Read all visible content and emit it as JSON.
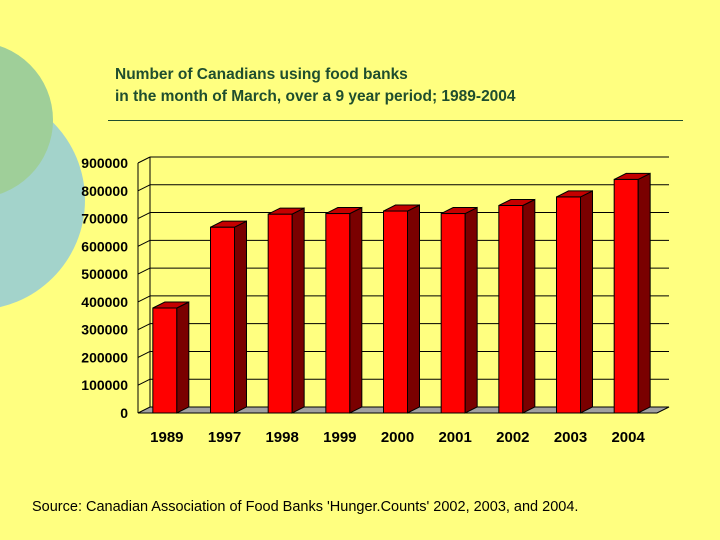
{
  "slide": {
    "title_line1": "Number of Canadians using food banks",
    "title_line2": "in the month of  March, over a 9 year period; 1989-2004",
    "source": "Source:  Canadian Association of Food Banks 'Hunger.Counts' 2002, 2003, and 2004."
  },
  "colors": {
    "background": "#ffff80",
    "bar_front": "#ff0000",
    "bar_top": "#c40000",
    "bar_side": "#7a0000",
    "title_text": "#1f4e2e"
  },
  "chart_data": {
    "type": "bar",
    "categories": [
      "1989",
      "1997",
      "1998",
      "1999",
      "2000",
      "2001",
      "2002",
      "2003",
      "2004"
    ],
    "values": [
      378000,
      669000,
      716000,
      718000,
      727000,
      718000,
      747000,
      778000,
      841000
    ],
    "ylim": [
      0,
      900000
    ],
    "yticks": [
      "0",
      "100000",
      "200000",
      "300000",
      "400000",
      "500000",
      "600000",
      "700000",
      "800000",
      "900000"
    ],
    "grid": true,
    "style": "3d-column"
  }
}
